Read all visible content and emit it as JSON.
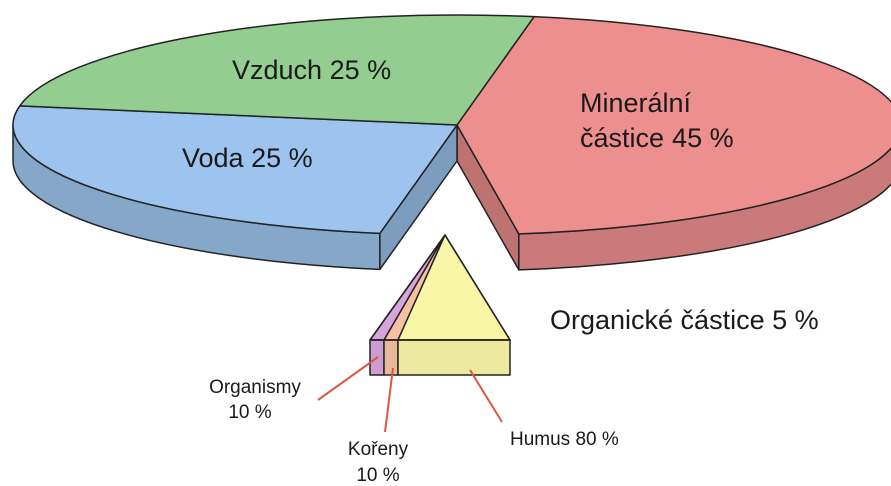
{
  "chart_data": [
    {
      "type": "pie3d",
      "categories": [
        "Minerální částice",
        "Organické částice",
        "Voda",
        "Vzduch"
      ],
      "values": [
        45,
        5,
        25,
        25
      ],
      "value_labels": [
        "45 %",
        "5 %",
        "25 %",
        "25 %"
      ],
      "colors": [
        "#ee8f8f",
        "#f9f5a6",
        "#9cc4ee",
        "#93cd8f"
      ]
    },
    {
      "type": "pyramid",
      "categories": [
        "Organismy",
        "Kořeny",
        "Humus"
      ],
      "values": [
        10,
        10,
        80
      ],
      "value_labels": [
        "10 %",
        "10 %",
        "80 %"
      ],
      "colors": [
        "#d8a4dc",
        "#f5c1a1",
        "#f9f5a6"
      ]
    }
  ]
}
